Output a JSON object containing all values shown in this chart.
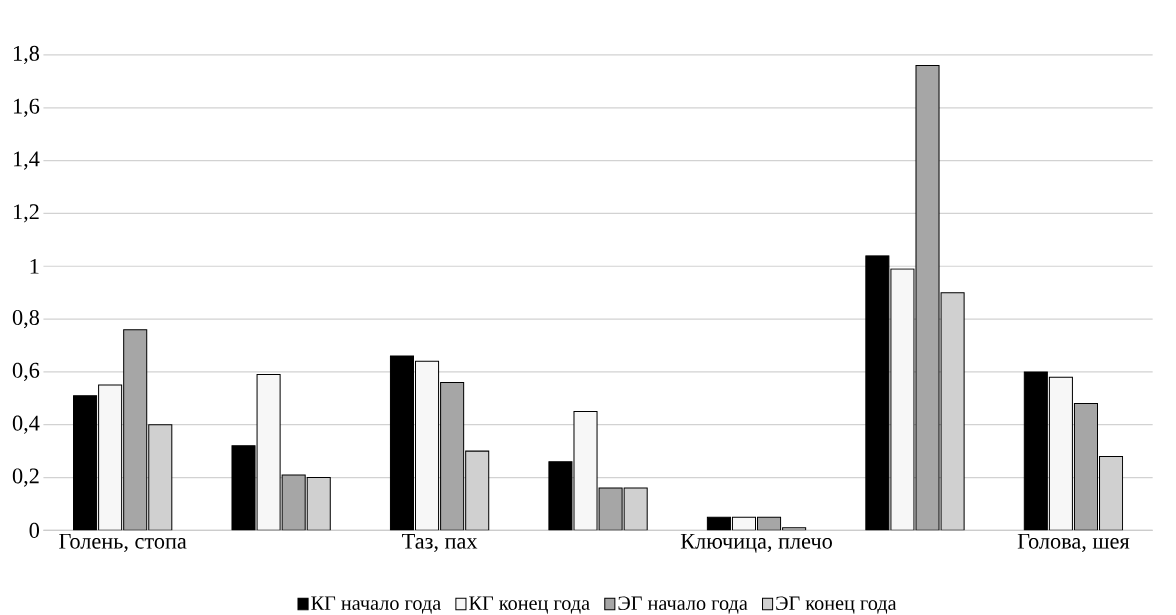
{
  "chart_data": {
    "type": "bar",
    "categories": [
      "Голень, стопа",
      null,
      "Таз, пах",
      null,
      "Ключица, плечо",
      null,
      "Голова, шея"
    ],
    "series": [
      {
        "name": "КГ начало года",
        "color": "#000000",
        "values": [
          0.51,
          0.32,
          0.66,
          0.26,
          0.05,
          1.04,
          0.6
        ]
      },
      {
        "name": "КГ конец года",
        "color": "#f7f7f7",
        "values": [
          0.55,
          0.59,
          0.64,
          0.45,
          0.05,
          0.99,
          0.58
        ]
      },
      {
        "name": "ЭГ начало года",
        "color": "#a6a6a6",
        "values": [
          0.76,
          0.21,
          0.56,
          0.16,
          0.05,
          1.76,
          0.48
        ]
      },
      {
        "name": "ЭГ конец года",
        "color": "#d0d0d0",
        "values": [
          0.4,
          0.2,
          0.3,
          0.16,
          0.01,
          0.9,
          0.28
        ]
      }
    ],
    "ylim": [
      0,
      1.8
    ],
    "yticks": [
      0,
      {
        "value": 0.2,
        "label": "0,2"
      },
      {
        "value": 0.4,
        "label": "0,4"
      },
      {
        "value": 0.6,
        "label": "0,6"
      },
      {
        "value": 0.8,
        "label": "0,8"
      },
      1,
      {
        "value": 1.2,
        "label": "1,2"
      },
      {
        "value": 1.4,
        "label": "1,4"
      },
      {
        "value": 1.6,
        "label": "1,6"
      },
      {
        "value": 1.8,
        "label": "1,8"
      }
    ],
    "grid": "y",
    "legend": "bottom"
  }
}
